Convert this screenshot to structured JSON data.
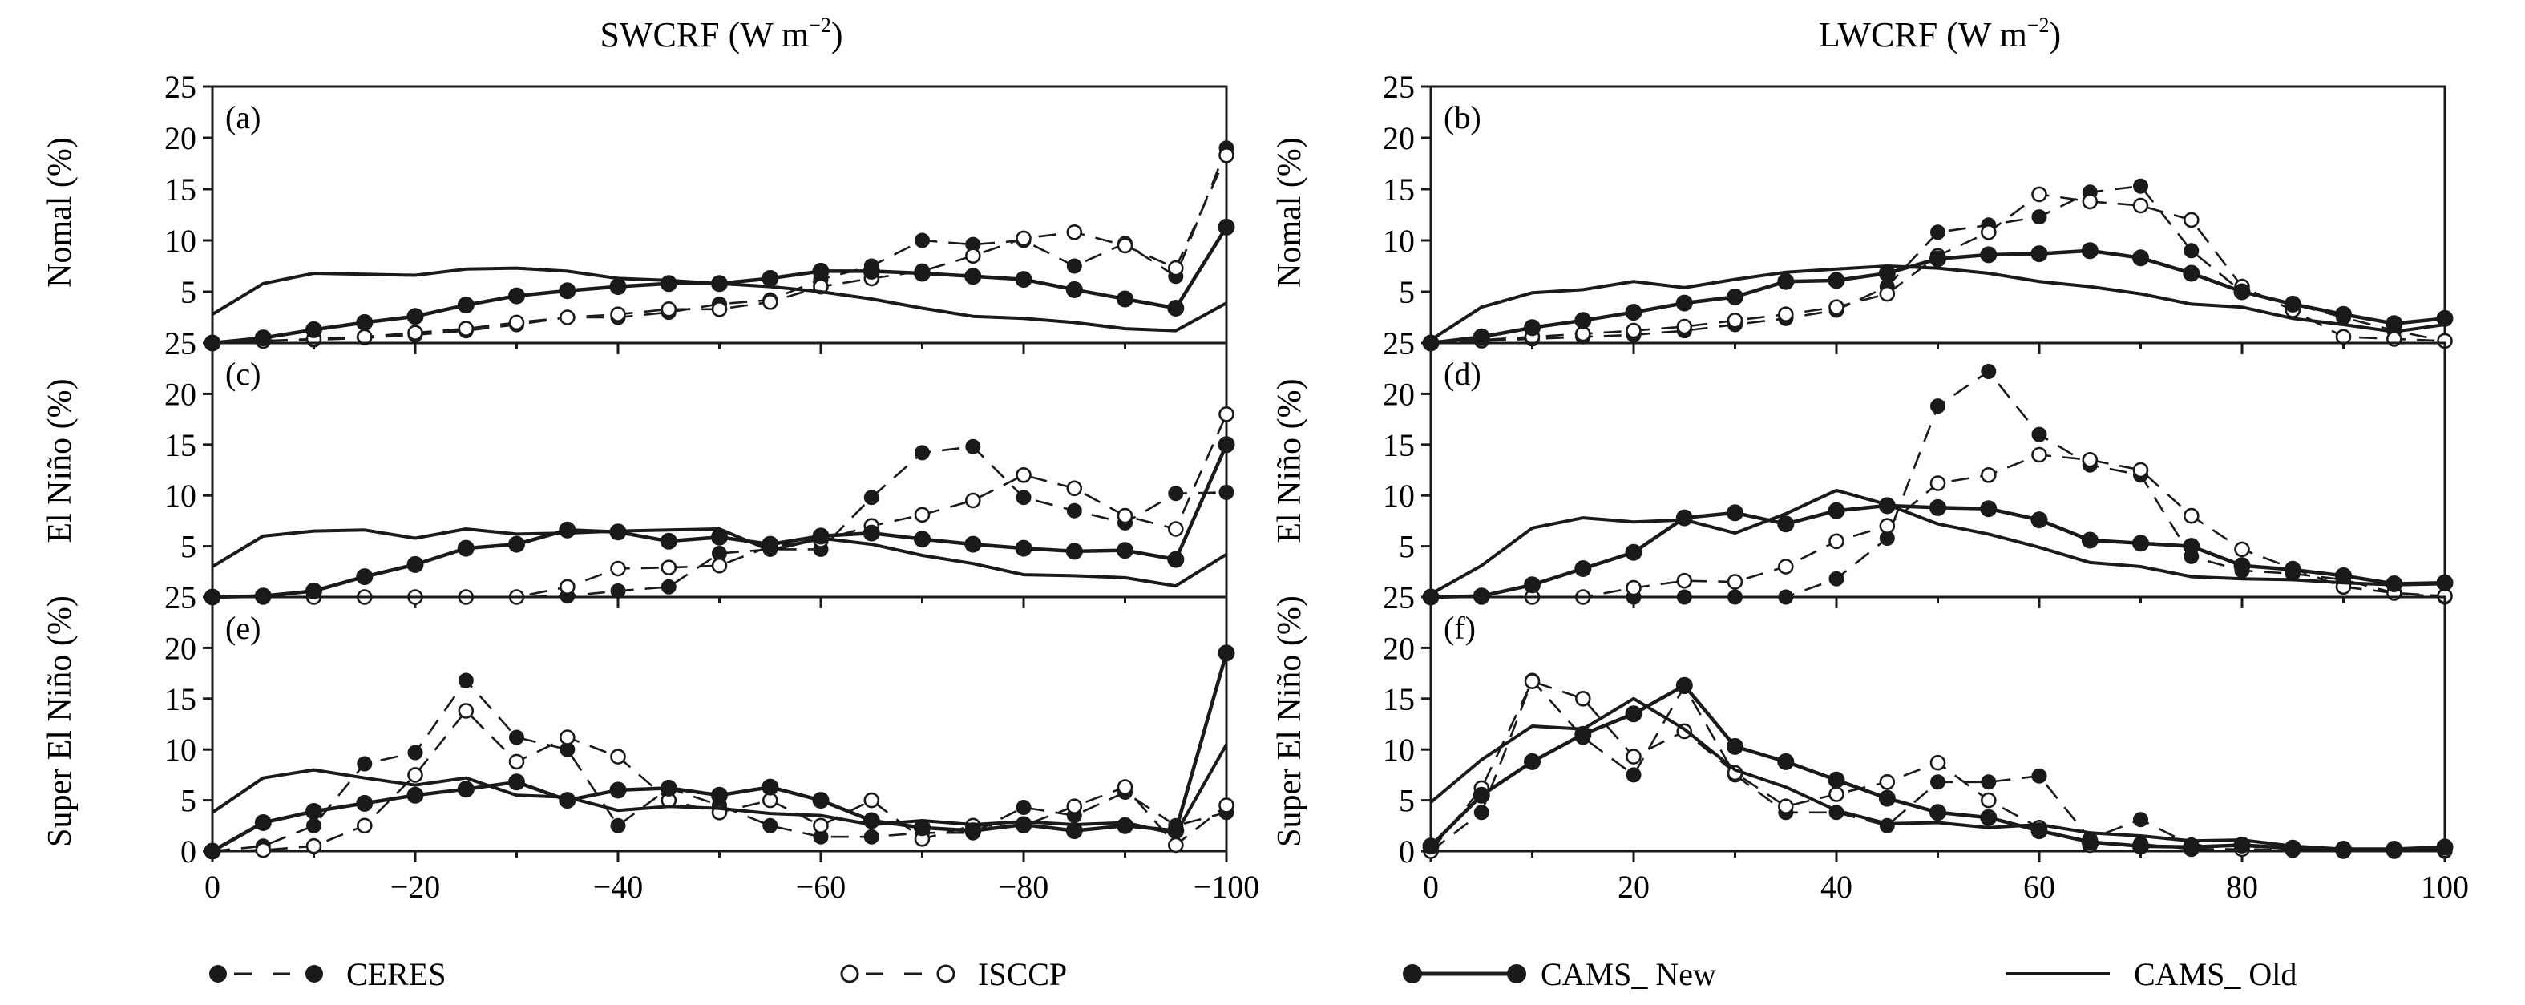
{
  "columns": [
    {
      "title": "SWCRF (W m",
      "sup": "−2",
      "close": ")"
    },
    {
      "title": "LWCRF (W m",
      "sup": "−2",
      "close": ")"
    }
  ],
  "row_labels": [
    "Nomal (%)",
    "El Niño (%)",
    "Super El Niño (%)"
  ],
  "panel_labels": [
    "(a)",
    "(b)",
    "(c)",
    "(d)",
    "(e)",
    "(f)"
  ],
  "legend": [
    {
      "label": "CERES",
      "style": "dashed-filled"
    },
    {
      "label": "ISCCP",
      "style": "dashed-open"
    },
    {
      "label": "CAMS_ New",
      "style": "solid-filled"
    },
    {
      "label": "CAMS_ Old",
      "style": "solid"
    }
  ],
  "chart_data": [
    {
      "type": "line",
      "panel": "(a)",
      "ylabel": "Nomal (%)",
      "xlabel": "",
      "x": [
        0,
        -5,
        -10,
        -15,
        -20,
        -25,
        -30,
        -35,
        -40,
        -45,
        -50,
        -55,
        -60,
        -65,
        -70,
        -75,
        -80,
        -85,
        -90,
        -95,
        -100
      ],
      "xticks": [
        "0",
        "−20",
        "−40",
        "−60",
        "−80",
        "−100"
      ],
      "yticks": [
        "25",
        "20",
        "15",
        "10",
        "5"
      ],
      "ylim": [
        0,
        25
      ],
      "series": [
        {
          "name": "CERES",
          "values": [
            0,
            0.2,
            0.3,
            0.5,
            0.8,
            1.2,
            1.8,
            2.5,
            2.5,
            3.0,
            3.8,
            4.2,
            6.2,
            7.5,
            10.0,
            9.6,
            10.0,
            7.5,
            9.7,
            6.5,
            19.0
          ]
        },
        {
          "name": "ISCCP",
          "values": [
            0,
            0.2,
            0.4,
            0.6,
            1.0,
            1.4,
            2.0,
            2.5,
            2.8,
            3.3,
            3.3,
            4.0,
            5.5,
            6.3,
            7.0,
            8.5,
            10.2,
            10.8,
            9.5,
            7.3,
            18.3
          ]
        },
        {
          "name": "CAMS_ New",
          "values": [
            0,
            0.5,
            1.3,
            2.0,
            2.6,
            3.7,
            4.6,
            5.1,
            5.5,
            5.8,
            5.8,
            6.3,
            7.0,
            7.0,
            6.8,
            6.5,
            6.2,
            5.2,
            4.3,
            3.4,
            11.3
          ]
        },
        {
          "name": "CAMS_ Old",
          "values": [
            2.8,
            5.8,
            6.8,
            6.7,
            6.6,
            7.2,
            7.3,
            7.0,
            6.3,
            6.1,
            5.8,
            5.5,
            5.0,
            4.3,
            3.4,
            2.6,
            2.4,
            2.0,
            1.4,
            1.2,
            3.9
          ]
        }
      ]
    },
    {
      "type": "line",
      "panel": "(b)",
      "ylabel": "Nomal (%)",
      "xlabel": "",
      "x": [
        0,
        5,
        10,
        15,
        20,
        25,
        30,
        35,
        40,
        45,
        50,
        55,
        60,
        65,
        70,
        75,
        80,
        85,
        90,
        95,
        100
      ],
      "xticks": [
        "0",
        "20",
        "40",
        "60",
        "80",
        "100"
      ],
      "yticks": [
        "25",
        "20",
        "15",
        "10",
        "5"
      ],
      "ylim": [
        0,
        25
      ],
      "series": [
        {
          "name": "CERES",
          "values": [
            0,
            0.2,
            0.4,
            0.6,
            0.8,
            1.2,
            1.8,
            2.4,
            3.2,
            5.5,
            10.8,
            11.5,
            12.3,
            14.7,
            15.3,
            9.0,
            5.0,
            3.8,
            2.5,
            1.2,
            0.2
          ]
        },
        {
          "name": "ISCCP",
          "values": [
            0,
            0.3,
            0.6,
            0.9,
            1.2,
            1.6,
            2.2,
            2.8,
            3.5,
            4.8,
            8.5,
            10.8,
            14.5,
            13.8,
            13.4,
            12.0,
            5.5,
            3.2,
            0.6,
            0.4,
            0.2
          ]
        },
        {
          "name": "CAMS_ New",
          "values": [
            0,
            0.6,
            1.5,
            2.2,
            3.0,
            3.9,
            4.5,
            6.0,
            6.1,
            6.8,
            8.2,
            8.6,
            8.7,
            9.0,
            8.3,
            6.8,
            5.0,
            3.8,
            2.8,
            1.9,
            2.4
          ]
        },
        {
          "name": "CAMS_ Old",
          "values": [
            0.3,
            3.5,
            4.9,
            5.2,
            6.0,
            5.4,
            6.2,
            6.9,
            7.2,
            7.5,
            7.3,
            6.8,
            6.0,
            5.5,
            4.8,
            3.8,
            3.5,
            2.4,
            1.8,
            1.1,
            1.8
          ]
        }
      ]
    },
    {
      "type": "line",
      "panel": "(c)",
      "ylabel": "El Niño (%)",
      "xlabel": "",
      "x": [
        0,
        -5,
        -10,
        -15,
        -20,
        -25,
        -30,
        -35,
        -40,
        -45,
        -50,
        -55,
        -60,
        -65,
        -70,
        -75,
        -80,
        -85,
        -90,
        -95,
        -100
      ],
      "xticks": [
        "0",
        "−20",
        "−40",
        "−60",
        "−80",
        "−100"
      ],
      "yticks": [
        "25",
        "20",
        "15",
        "10",
        "5"
      ],
      "ylim": [
        0,
        25
      ],
      "series": [
        {
          "name": "CERES",
          "values": [
            0,
            0,
            0,
            0,
            0,
            0,
            0,
            0.1,
            0.6,
            1.0,
            4.3,
            4.7,
            4.7,
            9.8,
            14.2,
            14.8,
            9.8,
            8.5,
            7.3,
            10.2,
            10.3
          ]
        },
        {
          "name": "ISCCP",
          "values": [
            0,
            0,
            0,
            0,
            0,
            0,
            0,
            1.0,
            2.8,
            2.9,
            3.1,
            5.0,
            5.6,
            7.0,
            8.1,
            9.5,
            12.0,
            10.7,
            8.0,
            6.7,
            18.0
          ]
        },
        {
          "name": "CAMS_ New",
          "values": [
            0,
            0.1,
            0.6,
            2.0,
            3.2,
            4.8,
            5.2,
            6.6,
            6.4,
            5.5,
            5.9,
            5.2,
            6.0,
            6.3,
            5.7,
            5.2,
            4.8,
            4.5,
            4.6,
            3.7,
            15.0
          ]
        },
        {
          "name": "CAMS_ Old",
          "values": [
            3.0,
            6.0,
            6.5,
            6.6,
            5.8,
            6.7,
            6.2,
            6.3,
            6.5,
            6.6,
            6.7,
            4.6,
            5.8,
            5.2,
            4.1,
            3.3,
            2.2,
            2.1,
            1.9,
            1.1,
            4.2
          ]
        }
      ]
    },
    {
      "type": "line",
      "panel": "(d)",
      "ylabel": "El Niño (%)",
      "xlabel": "",
      "x": [
        0,
        5,
        10,
        15,
        20,
        25,
        30,
        35,
        40,
        45,
        50,
        55,
        60,
        65,
        70,
        75,
        80,
        85,
        90,
        95,
        100
      ],
      "xticks": [
        "0",
        "20",
        "40",
        "60",
        "80",
        "100"
      ],
      "yticks": [
        "25",
        "20",
        "15",
        "10",
        "5"
      ],
      "ylim": [
        0,
        25
      ],
      "series": [
        {
          "name": "CERES",
          "values": [
            0,
            0,
            0,
            0,
            0,
            0,
            0,
            0,
            1.8,
            5.8,
            18.8,
            22.2,
            16.0,
            13.0,
            12.0,
            4.0,
            2.6,
            2.3,
            1.7,
            0.4,
            0
          ]
        },
        {
          "name": "ISCCP",
          "values": [
            0,
            0,
            0,
            0,
            0.9,
            1.6,
            1.5,
            3.0,
            5.5,
            7.0,
            11.2,
            12.0,
            14.0,
            13.5,
            12.5,
            8.0,
            4.7,
            2.8,
            1.0,
            0.4,
            0.1
          ]
        },
        {
          "name": "CAMS_ New",
          "values": [
            0,
            0.1,
            1.2,
            2.8,
            4.4,
            7.8,
            8.3,
            7.2,
            8.5,
            9.0,
            8.8,
            8.7,
            7.6,
            5.6,
            5.3,
            5.0,
            3.1,
            2.7,
            2.1,
            1.3,
            1.4
          ]
        },
        {
          "name": "CAMS_ Old",
          "values": [
            0.3,
            3.1,
            6.8,
            7.8,
            7.4,
            7.6,
            6.3,
            8.2,
            10.5,
            9.1,
            7.2,
            6.2,
            4.9,
            3.4,
            3.0,
            2.0,
            1.8,
            1.7,
            1.4,
            1.2,
            1.3
          ]
        }
      ]
    },
    {
      "type": "line",
      "panel": "(e)",
      "ylabel": "Super El Niño (%)",
      "xlabel": "",
      "x": [
        0,
        -5,
        -10,
        -15,
        -20,
        -25,
        -30,
        -35,
        -40,
        -45,
        -50,
        -55,
        -60,
        -65,
        -70,
        -75,
        -80,
        -85,
        -90,
        -95,
        -100
      ],
      "xticks": [
        "0",
        "−20",
        "−40",
        "−60",
        "−80",
        "−100"
      ],
      "yticks": [
        "25",
        "20",
        "15",
        "10",
        "5",
        "0"
      ],
      "ylim": [
        0,
        25
      ],
      "series": [
        {
          "name": "CERES",
          "values": [
            0,
            0.5,
            2.5,
            8.6,
            9.7,
            16.8,
            11.2,
            10.0,
            2.5,
            6.2,
            4.5,
            2.5,
            1.4,
            1.4,
            1.8,
            1.8,
            4.3,
            3.5,
            5.8,
            2.5,
            3.8
          ]
        },
        {
          "name": "ISCCP",
          "values": [
            0,
            0.1,
            0.5,
            2.5,
            7.5,
            13.8,
            8.8,
            11.2,
            9.3,
            5.0,
            3.8,
            5.0,
            2.5,
            5.0,
            1.2,
            2.5,
            2.5,
            4.4,
            6.3,
            0.6,
            4.5
          ]
        },
        {
          "name": "CAMS_ New",
          "values": [
            0,
            2.8,
            3.9,
            4.7,
            5.5,
            6.1,
            6.8,
            5.0,
            6.0,
            6.2,
            5.5,
            6.3,
            5.0,
            3.0,
            2.3,
            2.0,
            2.6,
            2.0,
            2.5,
            2.0,
            19.5
          ]
        },
        {
          "name": "CAMS_ Old",
          "values": [
            3.8,
            7.2,
            8.0,
            7.2,
            6.5,
            7.2,
            5.5,
            5.3,
            4.0,
            4.4,
            4.2,
            3.7,
            3.5,
            2.6,
            3.0,
            2.6,
            2.9,
            2.6,
            2.8,
            1.7,
            10.5
          ]
        }
      ]
    },
    {
      "type": "line",
      "panel": "(f)",
      "ylabel": "Super El Niño (%)",
      "xlabel": "",
      "x": [
        0,
        5,
        10,
        15,
        20,
        25,
        30,
        35,
        40,
        45,
        50,
        55,
        60,
        65,
        70,
        75,
        80,
        85,
        90,
        95,
        100
      ],
      "xticks": [
        "0",
        "20",
        "40",
        "60",
        "80",
        "100"
      ],
      "yticks": [
        "25",
        "20",
        "15",
        "10",
        "5",
        "0"
      ],
      "ylim": [
        0,
        25
      ],
      "series": [
        {
          "name": "CERES",
          "values": [
            0,
            3.8,
            16.8,
            11.2,
            7.5,
            16.2,
            7.5,
            3.8,
            3.8,
            2.5,
            6.8,
            6.8,
            7.4,
            1.2,
            3.1,
            0.6,
            0.5,
            0.2,
            0,
            0,
            0
          ]
        },
        {
          "name": "ISCCP",
          "values": [
            0,
            6.2,
            16.7,
            15.0,
            9.3,
            11.8,
            7.7,
            4.4,
            5.6,
            6.8,
            8.7,
            5.0,
            2.3,
            0.6,
            0.7,
            0.2,
            0.2,
            0.1,
            0,
            0,
            0.1
          ]
        },
        {
          "name": "CAMS_ New",
          "values": [
            0.5,
            5.5,
            8.8,
            11.5,
            13.5,
            16.3,
            10.3,
            8.8,
            7.0,
            5.2,
            3.8,
            3.3,
            2.0,
            0.9,
            0.5,
            0.4,
            0.6,
            0.3,
            0.2,
            0.2,
            0.4
          ]
        },
        {
          "name": "CAMS_ Old",
          "values": [
            4.8,
            9.0,
            12.3,
            12.0,
            15.0,
            12.0,
            8.0,
            6.3,
            4.0,
            2.7,
            2.8,
            2.3,
            2.6,
            1.8,
            1.5,
            1.0,
            1.1,
            0.5,
            0.2,
            0.2,
            0.3
          ]
        }
      ]
    }
  ]
}
